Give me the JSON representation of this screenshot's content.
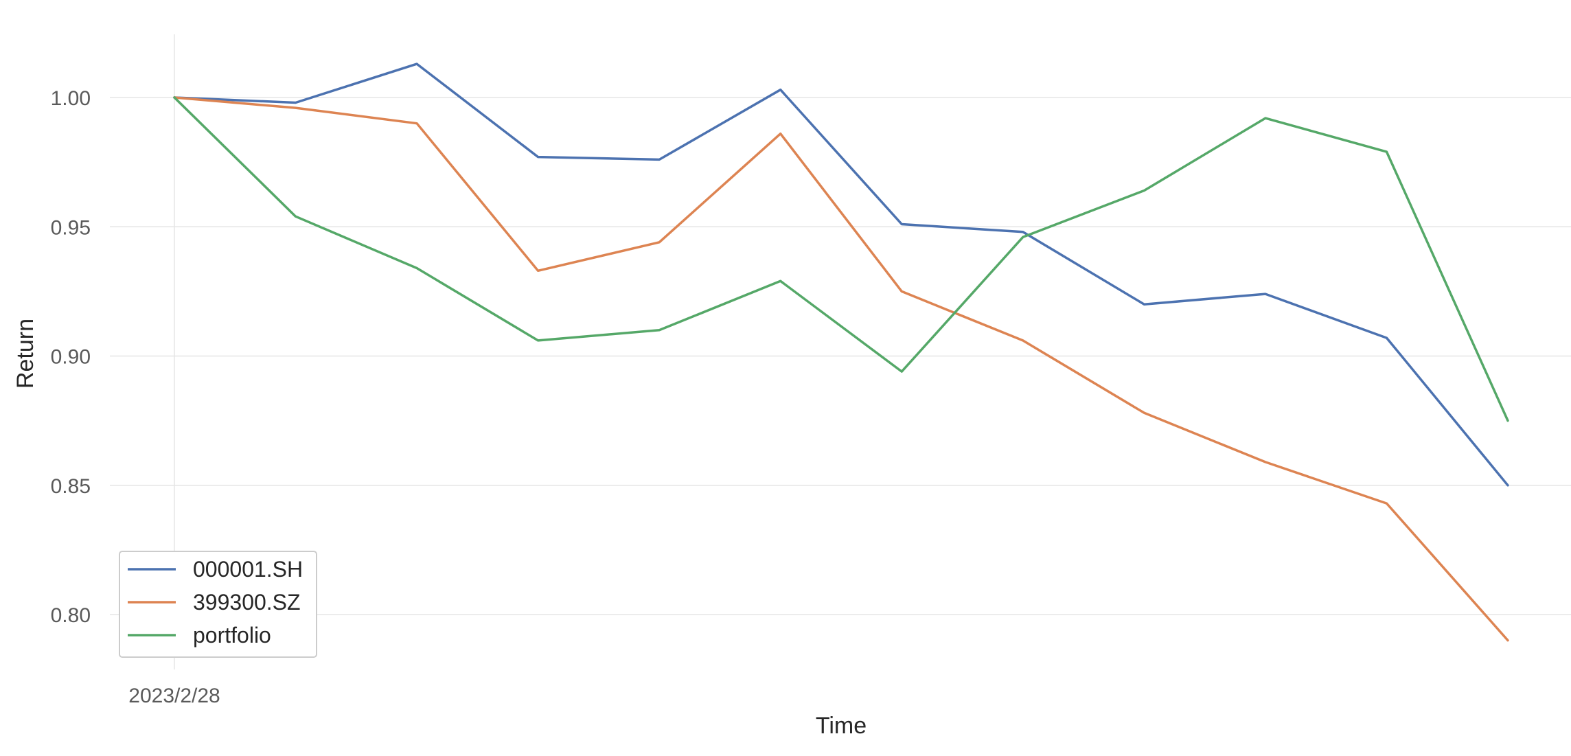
{
  "chart_data": {
    "type": "line",
    "title": "",
    "xlabel": "Time",
    "ylabel": "Return",
    "x": [
      0,
      1,
      2,
      3,
      4,
      5,
      6,
      7,
      8,
      9,
      10,
      11
    ],
    "x_tick_labels": [
      {
        "x": 0,
        "label": "2023/2/28"
      }
    ],
    "y_ticks": [
      0.8,
      0.85,
      0.9,
      0.95,
      1.0
    ],
    "y_tick_labels": [
      "0.80",
      "0.85",
      "0.90",
      "0.95",
      "1.00"
    ],
    "xlim": [
      -0.5,
      11.5
    ],
    "ylim": [
      0.78,
      1.024
    ],
    "grid": true,
    "legend_position": "lower-left",
    "series": [
      {
        "name": "000001.SH",
        "color": "#4c72b0",
        "values": [
          1.0,
          0.998,
          1.013,
          0.977,
          0.976,
          1.003,
          0.951,
          0.948,
          0.92,
          0.924,
          0.907,
          0.85
        ]
      },
      {
        "name": "399300.SZ",
        "color": "#dd8452",
        "values": [
          1.0,
          0.996,
          0.99,
          0.933,
          0.944,
          0.986,
          0.925,
          0.906,
          0.878,
          0.859,
          0.843,
          0.79
        ]
      },
      {
        "name": "portfolio",
        "color": "#55a868",
        "values": [
          1.0,
          0.954,
          0.934,
          0.906,
          0.91,
          0.929,
          0.894,
          0.946,
          0.964,
          0.992,
          0.979,
          0.875
        ]
      }
    ]
  }
}
